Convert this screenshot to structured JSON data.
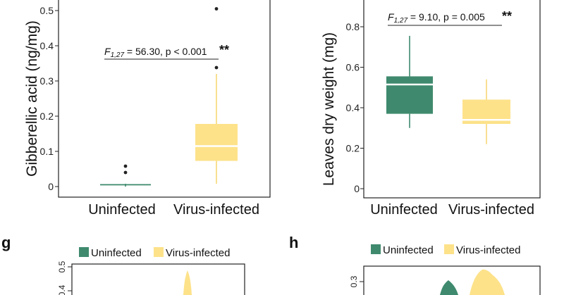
{
  "colors": {
    "uninfected": "#3f8a6e",
    "virus_infected": "#fde28a",
    "virus_whisker": "#f7d978",
    "median": "#ffffff",
    "axis": "#222222"
  },
  "chart_data": [
    {
      "type": "box",
      "ylabel": "Gibberellic acid (ng/mg)",
      "ylim": [
        -0.01,
        0.53
      ],
      "yticks": [
        0,
        0.1,
        0.2,
        0.3,
        0.4,
        0.5
      ],
      "ytick_labels": [
        "0",
        "0.1",
        "0.2",
        "0.3",
        "0.4",
        "0.5"
      ],
      "categories": [
        "Uninfected",
        "Virus-infected"
      ],
      "boxes": [
        {
          "name": "Uninfected",
          "min": 0.0,
          "q1": 0.005,
          "median": 0.006,
          "q3": 0.007,
          "max": 0.008,
          "outliers": [
            0.04,
            0.058
          ]
        },
        {
          "name": "Virus-infected",
          "min": 0.008,
          "q1": 0.073,
          "median": 0.115,
          "q3": 0.178,
          "max": 0.32,
          "outliers": [
            0.338,
            0.505
          ]
        }
      ],
      "stat": {
        "F": "F",
        "df": "1,27",
        "rest": " = 56.30, p < 0.001",
        "stars": "**"
      }
    },
    {
      "type": "box",
      "ylabel": "Leaves dry weight (mg)",
      "ylim": [
        0,
        0.85
      ],
      "yticks": [
        0,
        0.2,
        0.4,
        0.6,
        0.8
      ],
      "ytick_labels": [
        "0",
        "0.2",
        "0.4",
        "0.6",
        "0.8"
      ],
      "categories": [
        "Uninfected",
        "Virus-infected"
      ],
      "boxes": [
        {
          "name": "Uninfected",
          "min": 0.3,
          "q1": 0.37,
          "median": 0.515,
          "q3": 0.555,
          "max": 0.755,
          "outliers": []
        },
        {
          "name": "Virus-infected",
          "min": 0.22,
          "q1": 0.32,
          "median": 0.34,
          "q3": 0.44,
          "max": 0.54,
          "outliers": []
        }
      ],
      "stat": {
        "F": "F",
        "df": "1,27",
        "rest": " = 9.10, p = 0.005",
        "stars": "**"
      }
    },
    {
      "type": "violin",
      "panel": "g",
      "legend": [
        "Uninfected",
        "Virus-infected"
      ],
      "ytick_labels": [
        "0.5",
        "0.4"
      ]
    },
    {
      "type": "violin",
      "panel": "h",
      "legend": [
        "Uninfected",
        "Virus-infected"
      ],
      "ytick_labels": [
        "0.3"
      ]
    }
  ]
}
